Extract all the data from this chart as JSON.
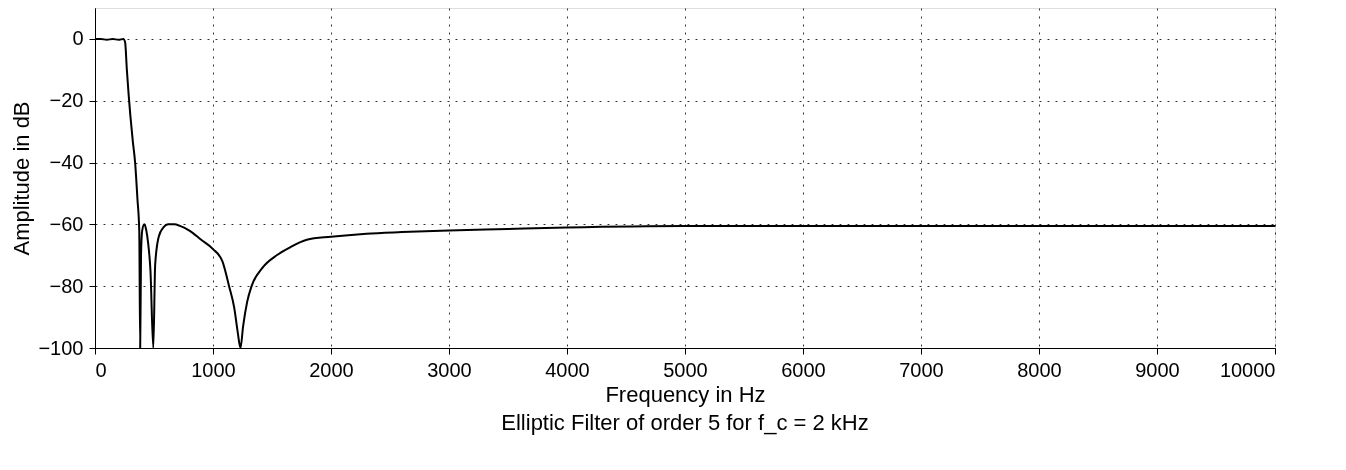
{
  "chart_data": {
    "type": "line",
    "title": "Elliptic Filter of order 5 for f_c = 2 kHz",
    "xlabel": "Frequency in Hz",
    "ylabel": "Amplitude in dB",
    "x": [
      0,
      50,
      100,
      150,
      200,
      240,
      255,
      270,
      300,
      320,
      340,
      360,
      375,
      383,
      390,
      400,
      418,
      435,
      450,
      470,
      494,
      510,
      540,
      580,
      620,
      673,
      720,
      800,
      900,
      1000,
      1080,
      1136,
      1180,
      1210,
      1233,
      1255,
      1290,
      1327,
      1420,
      1540,
      1650,
      1795,
      2000,
      2300,
      2600,
      3000,
      3500,
      4000,
      5000,
      6000,
      7000,
      8000,
      9000,
      10000
    ],
    "series": [
      {
        "color": "#000000",
        "values": [
          0,
          0,
          -0.3,
          0,
          -0.3,
          0,
          -1,
          -10,
          -25,
          -33,
          -40,
          -52,
          -62,
          -100,
          -70,
          -62,
          -60,
          -62,
          -66,
          -75,
          -100,
          -73,
          -64,
          -61,
          -60,
          -60,
          -60.5,
          -62,
          -65,
          -68,
          -72,
          -80,
          -87,
          -95,
          -100,
          -93,
          -85,
          -80,
          -74,
          -70,
          -67.5,
          -65,
          -64,
          -63,
          -62.5,
          -62,
          -61.5,
          -61,
          -60.5,
          -60.5,
          -60.5,
          -60.5,
          -60.5,
          -60.5
        ]
      }
    ],
    "xlim": [
      0,
      10000
    ],
    "xticks": [
      0,
      1000,
      2000,
      3000,
      4000,
      5000,
      6000,
      7000,
      8000,
      9000,
      10000
    ],
    "ylim": [
      -100,
      10
    ],
    "yticks": [
      -100,
      -80,
      -60,
      -40,
      -20,
      0
    ],
    "grid": true,
    "line_style": "solid",
    "marker": "none",
    "legend": false
  }
}
